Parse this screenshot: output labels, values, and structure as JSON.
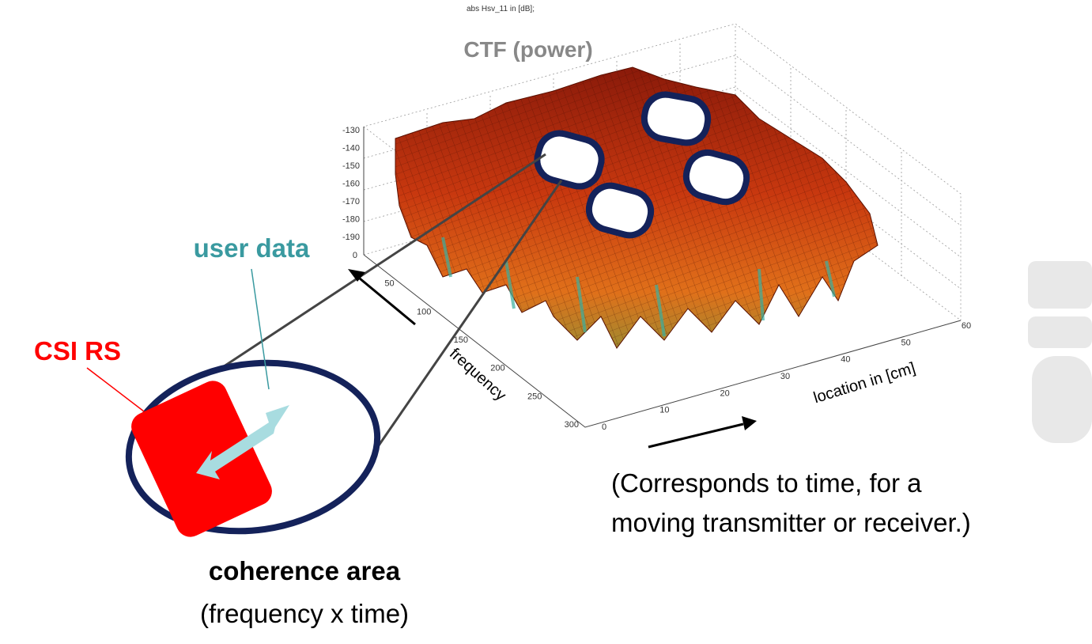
{
  "plot": {
    "title": "abs Hsv_11 in [dB];",
    "heading": "CTF (power)",
    "z_ticks": [
      -130,
      -140,
      -150,
      -160,
      -170,
      -180,
      -190
    ],
    "frequency_ticks": [
      0,
      50,
      100,
      150,
      200,
      250,
      300
    ],
    "location_ticks": [
      0,
      10,
      20,
      30,
      40,
      50,
      60
    ],
    "frequency_label": "frequency",
    "location_label": "location in [cm]"
  },
  "labels": {
    "user_data": "user data",
    "csi_rs": "CSI RS",
    "coherence_title": "coherence area",
    "coherence_sub": "(frequency x time)",
    "note_line1": "(Corresponds to time, for a",
    "note_line2": "moving transmitter or receiver.)"
  }
}
